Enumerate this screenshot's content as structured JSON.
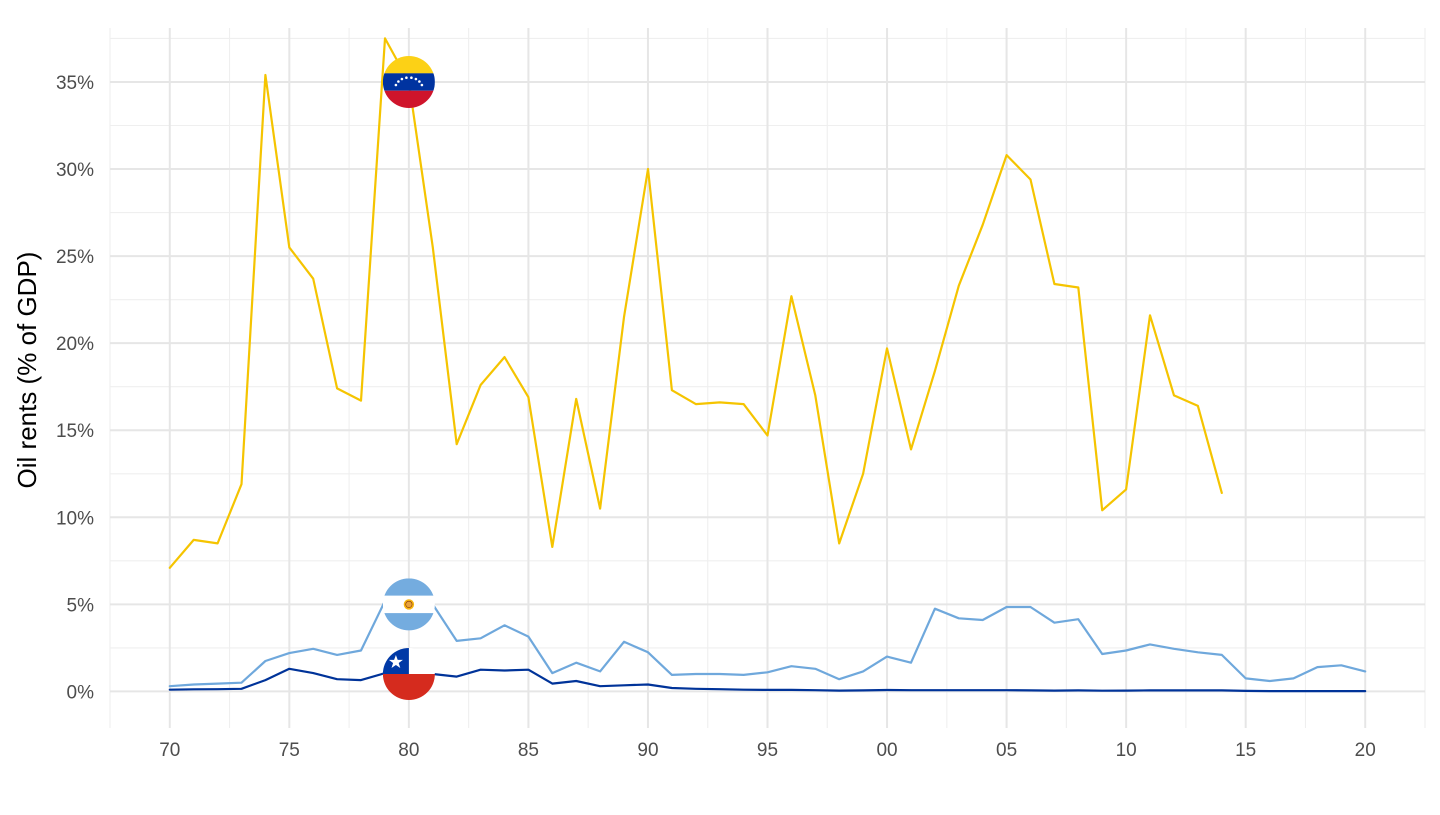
{
  "chart_data": {
    "type": "line",
    "ylabel": "Oil rents (% of GDP)",
    "xlim": [
      1967.5,
      2022.5
    ],
    "ylim": [
      -2.1,
      38.1
    ],
    "y_ticks": [
      0,
      5,
      10,
      15,
      20,
      25,
      30,
      35
    ],
    "y_tick_labels": [
      "0%",
      "5%",
      "10%",
      "15%",
      "20%",
      "25%",
      "30%",
      "35%"
    ],
    "x_ticks": [
      1970,
      1975,
      1980,
      1985,
      1990,
      1995,
      2000,
      2005,
      2010,
      2015,
      2020
    ],
    "x_tick_labels": [
      "70",
      "75",
      "80",
      "85",
      "90",
      "95",
      "00",
      "05",
      "10",
      "15",
      "20"
    ],
    "grid": true,
    "legend": "flag markers on lines at 1980",
    "series": [
      {
        "flag": "venezuela-flag",
        "color": "#F5C400",
        "x": [
          1970,
          1971,
          1972,
          1973,
          1974,
          1975,
          1976,
          1977,
          1978,
          1979,
          1980,
          1981,
          1982,
          1983,
          1984,
          1985,
          1986,
          1987,
          1988,
          1989,
          1990,
          1991,
          1992,
          1993,
          1994,
          1995,
          1996,
          1997,
          1998,
          1999,
          2000,
          2001,
          2002,
          2003,
          2004,
          2005,
          2006,
          2007,
          2008,
          2009,
          2010,
          2011,
          2012,
          2013,
          2014
        ],
        "values": [
          7.1,
          8.7,
          8.5,
          11.9,
          35.4,
          25.5,
          23.7,
          17.4,
          16.7,
          37.5,
          35.0,
          25.5,
          14.2,
          17.6,
          19.2,
          16.9,
          8.3,
          16.8,
          10.5,
          21.5,
          30.0,
          17.3,
          16.5,
          16.6,
          16.5,
          14.7,
          22.7,
          17.0,
          8.5,
          12.5,
          19.7,
          13.9,
          18.4,
          23.3,
          26.8,
          30.8,
          29.4,
          23.4,
          23.2,
          10.4,
          11.6,
          21.6,
          17.0,
          16.4,
          11.4
        ]
      },
      {
        "flag": "argentina-flag",
        "color": "#6FA8DC",
        "x": [
          1970,
          1971,
          1972,
          1973,
          1974,
          1975,
          1976,
          1977,
          1978,
          1979,
          1980,
          1981,
          1982,
          1983,
          1984,
          1985,
          1986,
          1987,
          1988,
          1989,
          1990,
          1991,
          1992,
          1993,
          1994,
          1995,
          1996,
          1997,
          1998,
          1999,
          2000,
          2001,
          2002,
          2003,
          2004,
          2005,
          2006,
          2007,
          2008,
          2009,
          2010,
          2011,
          2012,
          2013,
          2014,
          2015,
          2016,
          2017,
          2018,
          2019,
          2020
        ],
        "values": [
          0.3,
          0.4,
          0.45,
          0.5,
          1.75,
          2.2,
          2.45,
          2.1,
          2.35,
          5.2,
          5.0,
          5.0,
          2.9,
          3.05,
          3.8,
          3.15,
          1.05,
          1.65,
          1.15,
          2.85,
          2.25,
          0.95,
          1.0,
          1.0,
          0.95,
          1.1,
          1.45,
          1.3,
          0.7,
          1.15,
          2.0,
          1.65,
          4.75,
          4.2,
          4.1,
          4.85,
          4.85,
          3.95,
          4.15,
          2.15,
          2.35,
          2.7,
          2.45,
          2.25,
          2.1,
          0.75,
          0.6,
          0.75,
          1.4,
          1.5,
          1.15
        ]
      },
      {
        "flag": "chile-flag",
        "color": "#003399",
        "x": [
          1970,
          1971,
          1972,
          1973,
          1974,
          1975,
          1976,
          1977,
          1978,
          1979,
          1980,
          1981,
          1982,
          1983,
          1984,
          1985,
          1986,
          1987,
          1988,
          1989,
          1990,
          1991,
          1992,
          1993,
          1994,
          1995,
          1996,
          1997,
          1998,
          1999,
          2000,
          2001,
          2002,
          2003,
          2004,
          2005,
          2006,
          2007,
          2008,
          2009,
          2010,
          2011,
          2012,
          2013,
          2014,
          2015,
          2016,
          2017,
          2018,
          2019,
          2020
        ],
        "values": [
          0.1,
          0.12,
          0.13,
          0.15,
          0.65,
          1.3,
          1.05,
          0.7,
          0.65,
          1.05,
          1.0,
          1.0,
          0.85,
          1.25,
          1.2,
          1.25,
          0.45,
          0.6,
          0.3,
          0.35,
          0.4,
          0.2,
          0.15,
          0.13,
          0.1,
          0.09,
          0.09,
          0.07,
          0.05,
          0.06,
          0.08,
          0.07,
          0.07,
          0.07,
          0.07,
          0.07,
          0.06,
          0.05,
          0.06,
          0.04,
          0.05,
          0.06,
          0.06,
          0.06,
          0.06,
          0.03,
          0.02,
          0.02,
          0.02,
          0.02,
          0.02
        ]
      }
    ]
  }
}
